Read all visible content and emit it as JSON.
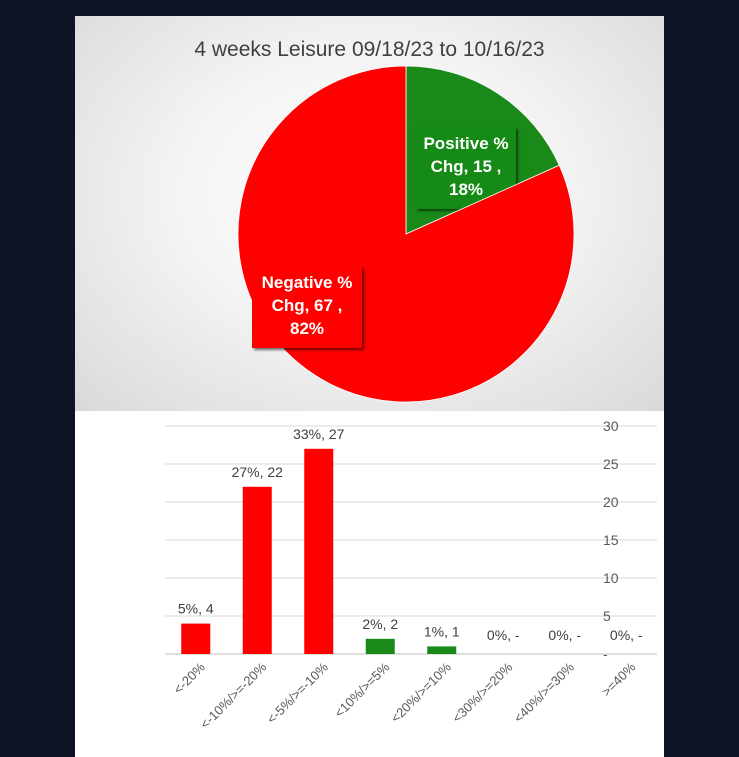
{
  "chart_data": [
    {
      "type": "pie",
      "title": "4 weeks Leisure 09/18/23 to 10/16/23",
      "slices": [
        {
          "name": "Positive % Chg",
          "value": 15,
          "percent": "18%",
          "color": "#198a19",
          "label_lines": [
            "Positive %",
            "Chg,  15 ,",
            "18%"
          ]
        },
        {
          "name": "Negative % Chg",
          "value": 67,
          "percent": "82%",
          "color": "#ff0000",
          "label_lines": [
            "Negative %",
            "Chg,  67 ,",
            "82%"
          ]
        }
      ]
    },
    {
      "type": "bar",
      "categories": [
        "<-20%",
        "<-10%/>=-20%",
        "<-5%/>=-10%",
        "<10%/>=5%",
        "<20%/>=10%",
        "<30%/>=20%",
        "<40%/>=30%",
        ">=40%"
      ],
      "values": [
        4,
        22,
        27,
        2,
        1,
        0,
        0,
        0
      ],
      "data_labels": [
        "5%,  4",
        "27%,  22",
        "33%,  27",
        "2%,  2",
        "1%,  1",
        "0%,  -",
        "0%,  -",
        "0%,  -"
      ],
      "bar_colors": [
        "#ff0000",
        "#ff0000",
        "#ff0000",
        "#198a19",
        "#198a19",
        "#198a19",
        "#198a19",
        "#198a19"
      ],
      "ylim": [
        0,
        30
      ],
      "yticks": [
        0,
        5,
        10,
        15,
        20,
        25,
        30
      ],
      "ytick_labels": [
        "-",
        "5",
        "10",
        "15",
        "20",
        "25",
        "30"
      ],
      "yaxis_position": "right",
      "grid": true
    }
  ]
}
